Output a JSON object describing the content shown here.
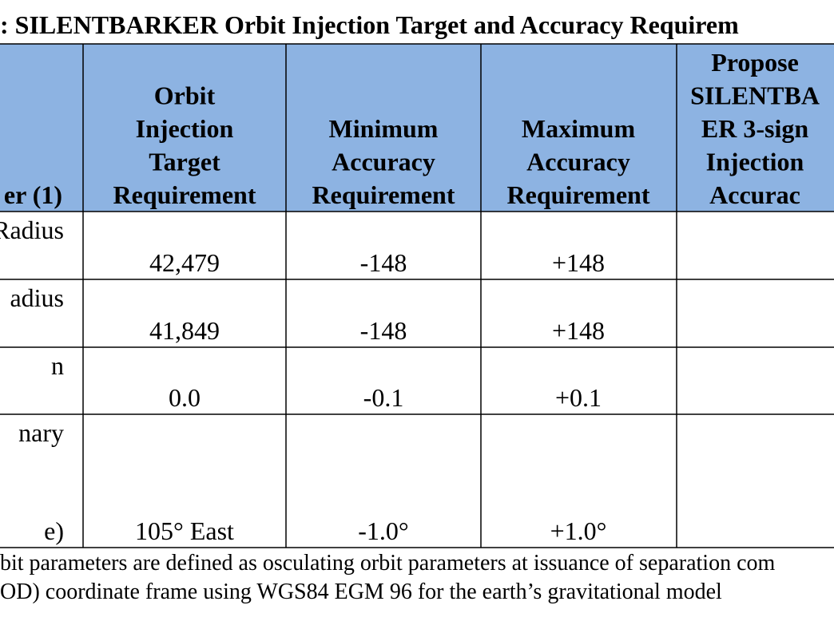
{
  "title": ":  SILENTBARKER Orbit Injection Target and Accuracy Requirem",
  "table": {
    "header": [
      [
        "er (1)"
      ],
      [
        "Orbit",
        "Injection",
        "Target",
        "Requirement"
      ],
      [
        "Minimum",
        "Accuracy",
        "Requirement"
      ],
      [
        "Maximum",
        "Accuracy",
        "Requirement"
      ],
      [
        "Propose",
        "SILENTBA",
        "ER 3-sign",
        "Injection",
        "Accurac"
      ]
    ],
    "rows": [
      {
        "label": [
          "Radius"
        ],
        "target": "42,479",
        "min": "-148",
        "max": "+148"
      },
      {
        "label": [
          "adius"
        ],
        "target": "41,849",
        "min": "-148",
        "max": "+148"
      },
      {
        "label": [
          "n"
        ],
        "target": "0.0",
        "min": "-0.1",
        "max": "+0.1"
      },
      {
        "label": [
          "nary",
          "e)"
        ],
        "target": "105° East",
        "min": "-1.0°",
        "max": "+1.0°"
      }
    ]
  },
  "footnote": [
    "bit parameters are defined as osculating orbit parameters at issuance of separation com",
    "OD) coordinate frame using WGS84 EGM 96 for the earth’s gravitational model"
  ]
}
